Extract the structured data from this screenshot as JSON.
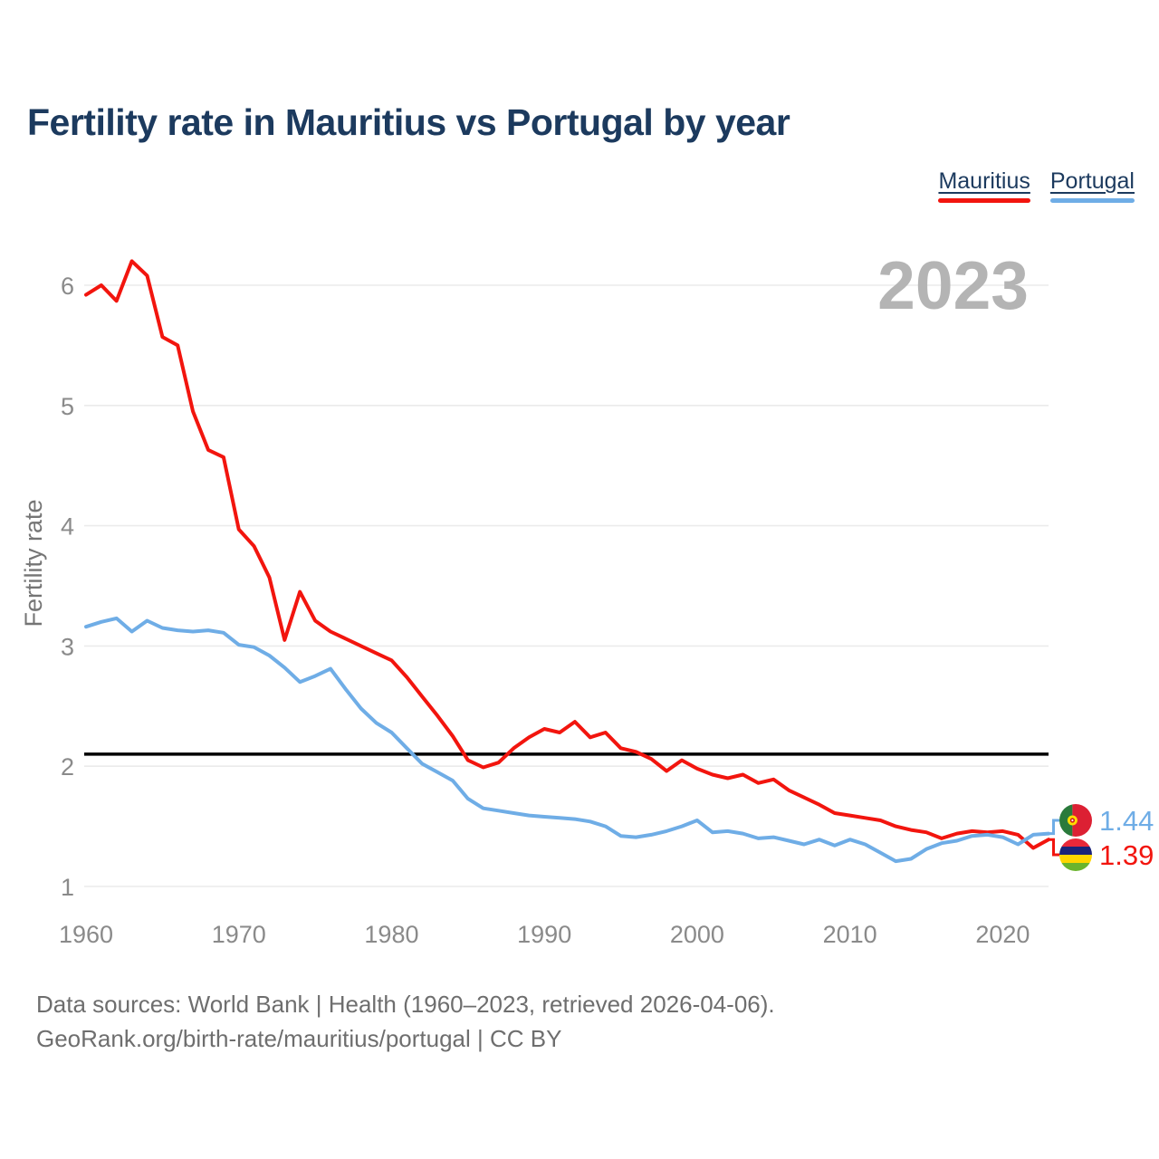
{
  "page": {
    "title": "Fertility rate in Mauritius vs Portugal by year"
  },
  "legend": {
    "items": [
      {
        "label": "Mauritius",
        "color": "#f2150e"
      },
      {
        "label": "Portugal",
        "color": "#6fade6"
      }
    ]
  },
  "watermark": "2023",
  "footer": {
    "line1": "Data sources: World Bank | Health (1960–2023, retrieved 2026-04-06).",
    "line2": "GeoRank.org/birth-rate/mauritius/portugal | CC BY"
  },
  "chart_data": {
    "type": "line",
    "title": "Fertility rate in Mauritius vs Portugal by year",
    "ylabel": "Fertility rate",
    "xlabel": "",
    "x": [
      1960,
      1961,
      1962,
      1963,
      1964,
      1965,
      1966,
      1967,
      1968,
      1969,
      1970,
      1971,
      1972,
      1973,
      1974,
      1975,
      1976,
      1977,
      1978,
      1979,
      1980,
      1981,
      1982,
      1983,
      1984,
      1985,
      1986,
      1987,
      1988,
      1989,
      1990,
      1991,
      1992,
      1993,
      1994,
      1995,
      1996,
      1997,
      1998,
      1999,
      2000,
      2001,
      2002,
      2003,
      2004,
      2005,
      2006,
      2007,
      2008,
      2009,
      2010,
      2011,
      2012,
      2013,
      2014,
      2015,
      2016,
      2017,
      2018,
      2019,
      2020,
      2021,
      2022,
      2023
    ],
    "series": [
      {
        "name": "Mauritius",
        "color": "#f2150e",
        "end_label": "1.39",
        "flag": "mauritius",
        "values": [
          5.92,
          6.0,
          5.87,
          6.2,
          6.08,
          5.57,
          5.5,
          4.95,
          4.63,
          4.57,
          3.97,
          3.83,
          3.57,
          3.05,
          3.45,
          3.21,
          3.12,
          3.06,
          3.0,
          2.94,
          2.88,
          2.74,
          2.58,
          2.42,
          2.25,
          2.05,
          1.99,
          2.03,
          2.15,
          2.24,
          2.31,
          2.28,
          2.37,
          2.24,
          2.28,
          2.15,
          2.12,
          2.06,
          1.96,
          2.05,
          1.98,
          1.93,
          1.9,
          1.93,
          1.86,
          1.89,
          1.8,
          1.74,
          1.68,
          1.61,
          1.59,
          1.57,
          1.55,
          1.5,
          1.47,
          1.45,
          1.4,
          1.44,
          1.46,
          1.45,
          1.46,
          1.43,
          1.32,
          1.39
        ]
      },
      {
        "name": "Portugal",
        "color": "#6fade6",
        "end_label": "1.44",
        "flag": "portugal",
        "values": [
          3.16,
          3.2,
          3.23,
          3.12,
          3.21,
          3.15,
          3.13,
          3.12,
          3.13,
          3.11,
          3.01,
          2.99,
          2.92,
          2.82,
          2.7,
          2.75,
          2.81,
          2.64,
          2.48,
          2.36,
          2.28,
          2.15,
          2.02,
          1.95,
          1.88,
          1.73,
          1.65,
          1.63,
          1.61,
          1.59,
          1.58,
          1.57,
          1.56,
          1.54,
          1.5,
          1.42,
          1.41,
          1.43,
          1.46,
          1.5,
          1.55,
          1.45,
          1.46,
          1.44,
          1.4,
          1.41,
          1.38,
          1.35,
          1.39,
          1.34,
          1.39,
          1.35,
          1.28,
          1.21,
          1.23,
          1.31,
          1.36,
          1.38,
          1.42,
          1.43,
          1.41,
          1.35,
          1.43,
          1.44
        ]
      }
    ],
    "yticks": [
      1,
      2,
      3,
      4,
      5,
      6
    ],
    "xticks": [
      1960,
      1970,
      1980,
      1990,
      2000,
      2010,
      2020
    ],
    "ylim": [
      0.9,
      6.4
    ],
    "xlim": [
      1960,
      2023
    ],
    "grid": "horizontal",
    "legend_position": "top-right",
    "reference_line": {
      "value": 2.1,
      "color": "#000000"
    },
    "flags": {
      "portugal": {
        "green": "#2a7a3b",
        "red": "#dc2033",
        "emblem_outer": "#ffdd00",
        "emblem_inner": "#d01818"
      },
      "mauritius": {
        "stripes": [
          "#ea2839",
          "#1a237a",
          "#ffd500",
          "#6ab42d"
        ]
      }
    }
  }
}
